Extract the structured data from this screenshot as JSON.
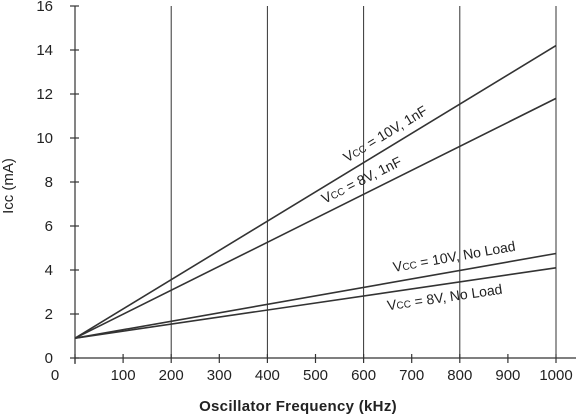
{
  "chart_data": {
    "type": "line",
    "xlabel": "Oscillator Frequency (kHz)",
    "ylabel": "Icc (mA)",
    "xlim": [
      0,
      1000
    ],
    "ylim": [
      0,
      16
    ],
    "x_ticks": [
      0,
      100,
      200,
      300,
      400,
      500,
      600,
      700,
      800,
      900,
      1000
    ],
    "y_ticks": [
      0,
      2,
      4,
      6,
      8,
      10,
      12,
      14,
      16
    ],
    "vertical_grid_at": [
      200,
      400,
      600,
      800,
      1000
    ],
    "horizontal_grid": false,
    "series": [
      {
        "name": "Vcc = 10V, 1nF",
        "x": [
          0,
          1000
        ],
        "y": [
          0.9,
          14.2
        ],
        "label_parts": [
          "V",
          "CC",
          " = 10V, 1nF"
        ]
      },
      {
        "name": "Vcc = 8V, 1nF",
        "x": [
          0,
          1000
        ],
        "y": [
          0.9,
          11.8
        ],
        "label_parts": [
          "V",
          "CC",
          " = 8V, 1nF"
        ]
      },
      {
        "name": "Vcc = 10V, No Load",
        "x": [
          0,
          1000
        ],
        "y": [
          0.9,
          4.75
        ],
        "label_parts": [
          "V",
          "CC",
          " = 10V, No Load"
        ]
      },
      {
        "name": "Vcc = 8V, No Load",
        "x": [
          0,
          1000
        ],
        "y": [
          0.9,
          4.1
        ],
        "label_parts": [
          "V",
          "CC",
          " = 8V, No Load"
        ]
      }
    ]
  }
}
